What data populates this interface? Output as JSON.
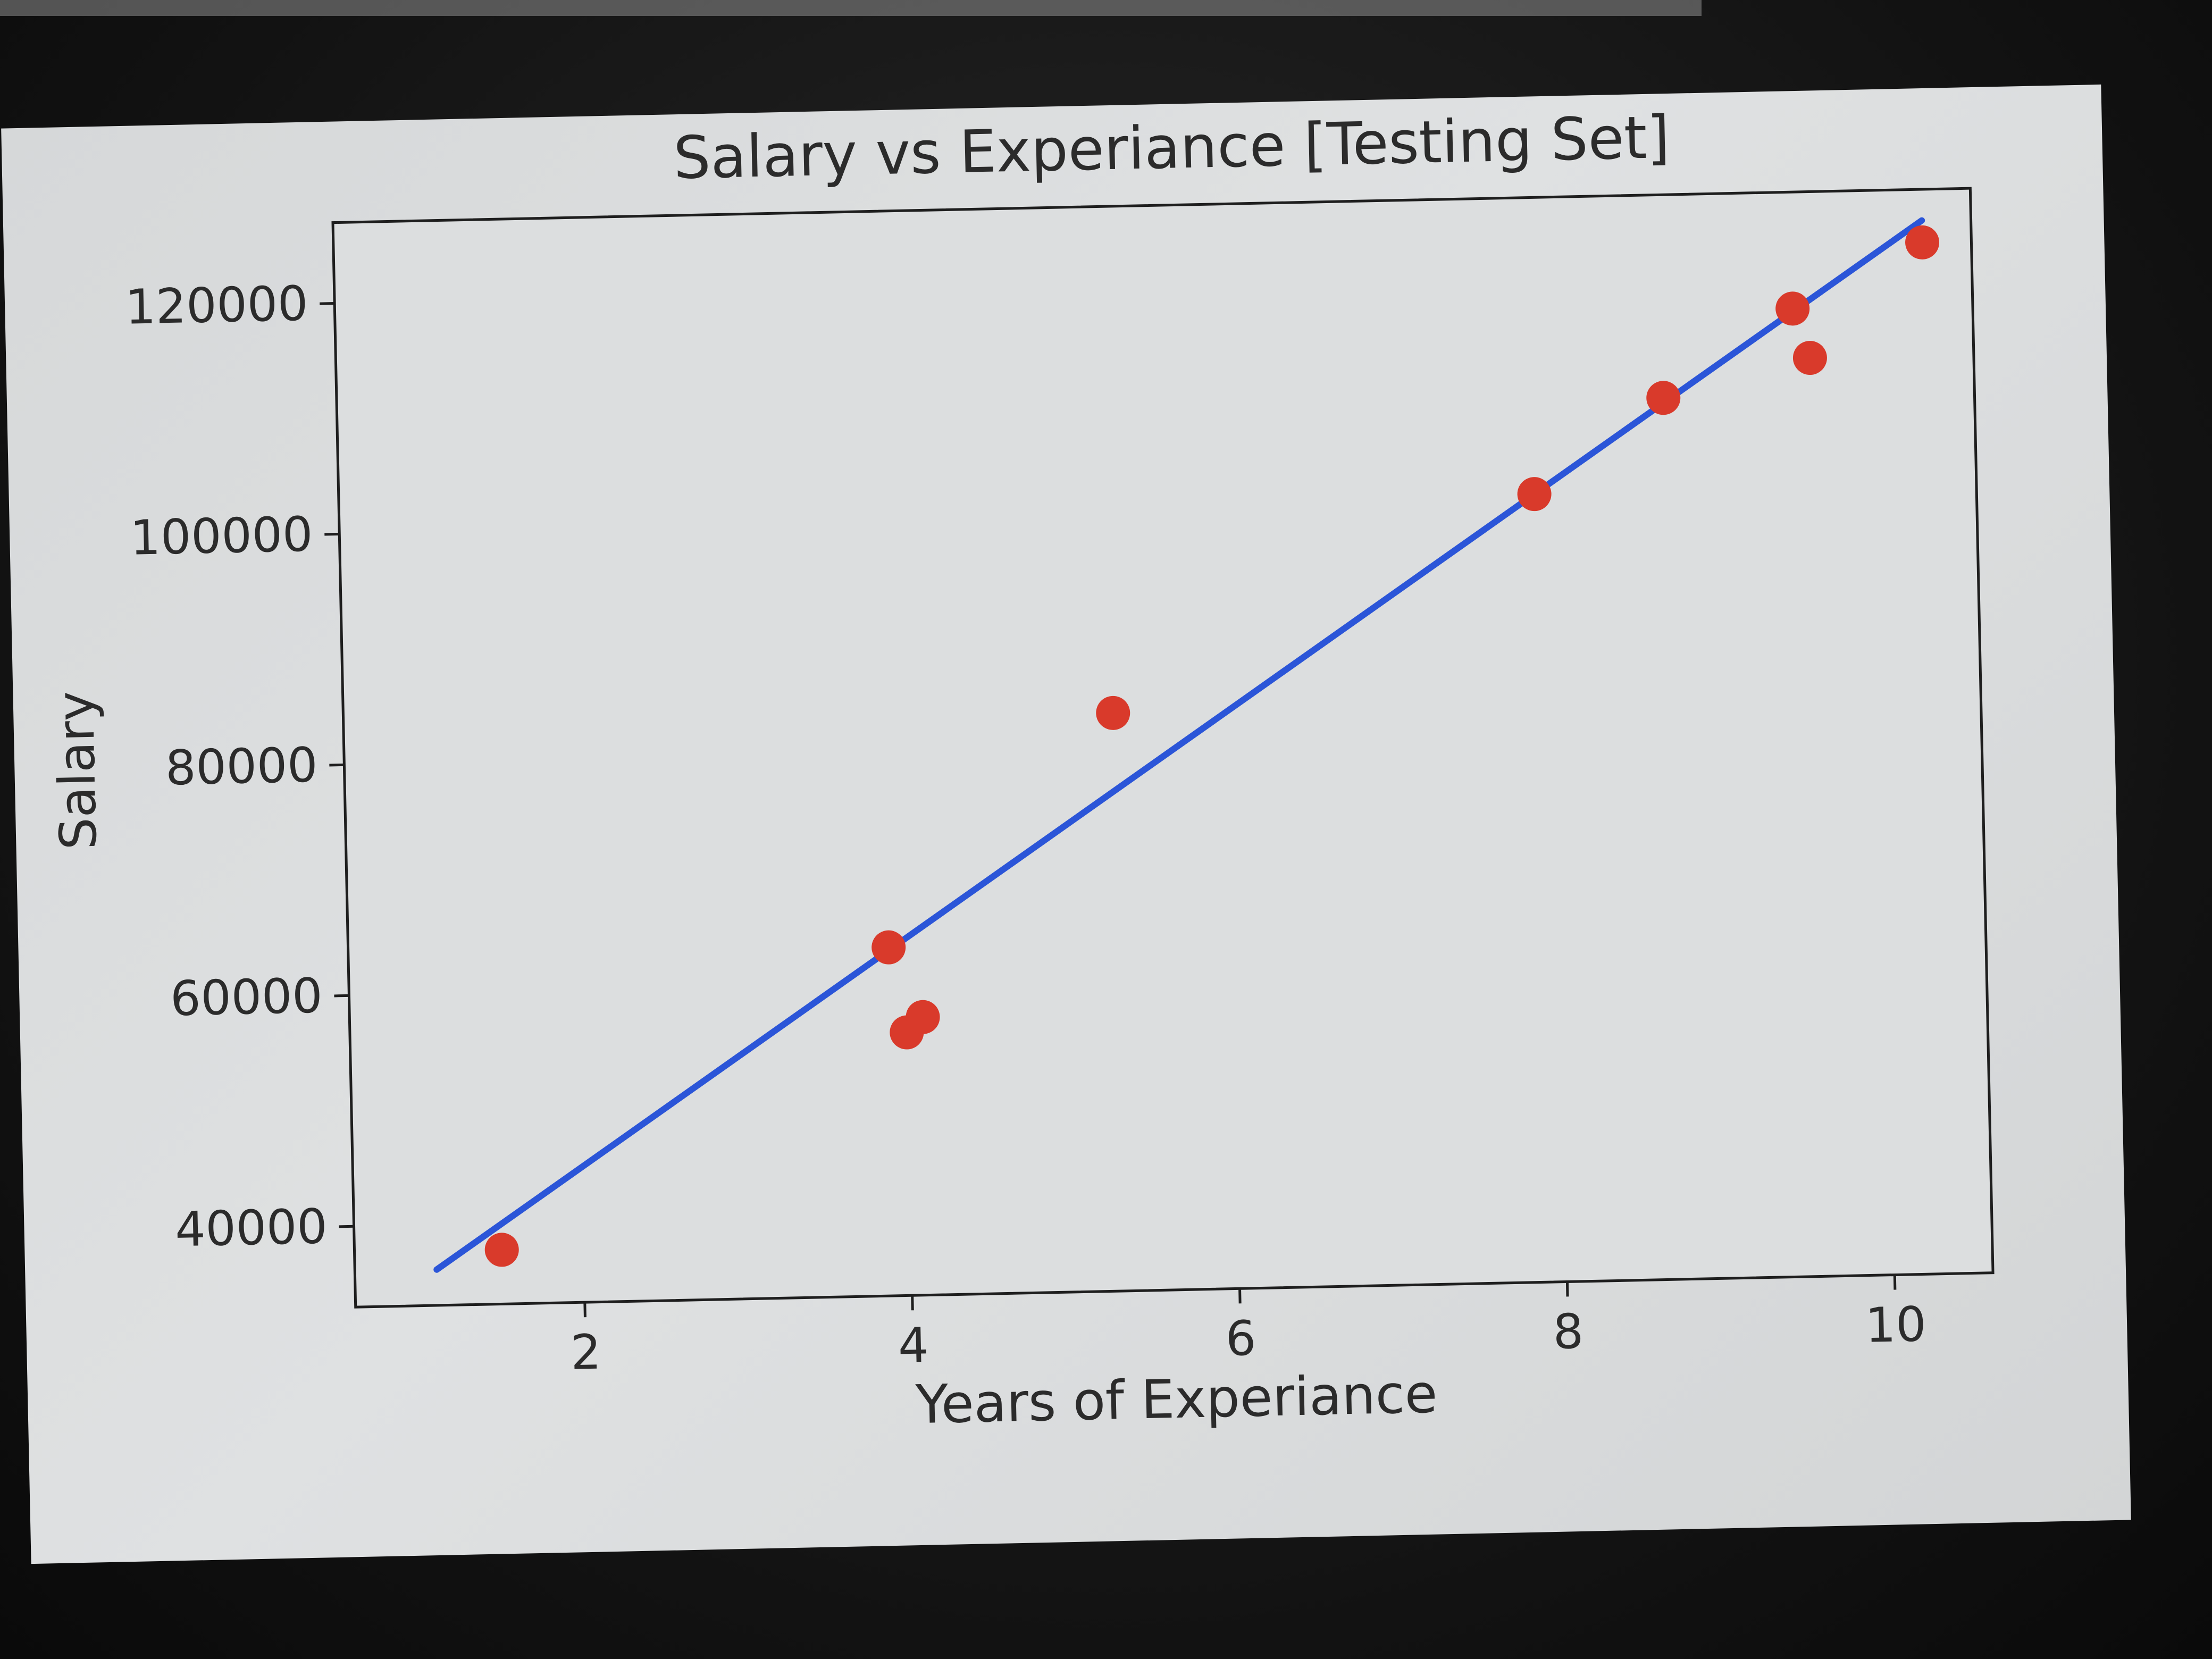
{
  "chart_data": {
    "type": "scatter",
    "title": "Salary vs Experiance [Testing Set]",
    "xlabel": "Years of Experiance",
    "ylabel": "Salary",
    "xlim": [
      0.6,
      10.6
    ],
    "ylim": [
      33000,
      127000
    ],
    "xticks": [
      2,
      4,
      6,
      8,
      10
    ],
    "xtick_labels": [
      "2",
      "4",
      "6",
      "8",
      "10"
    ],
    "yticks": [
      40000,
      60000,
      80000,
      100000,
      120000
    ],
    "ytick_labels": [
      "40000",
      "60000",
      "80000",
      "100000",
      "120000"
    ],
    "grid": false,
    "series": [
      {
        "kind": "scatter",
        "color": "#d93a2b",
        "points": [
          {
            "x": 1.5,
            "y": 37700
          },
          {
            "x": 3.9,
            "y": 63200
          },
          {
            "x": 4.0,
            "y": 55800
          },
          {
            "x": 4.1,
            "y": 57100
          },
          {
            "x": 5.3,
            "y": 83100
          },
          {
            "x": 7.9,
            "y": 101300
          },
          {
            "x": 8.7,
            "y": 109400
          },
          {
            "x": 9.5,
            "y": 116900
          },
          {
            "x": 9.6,
            "y": 112600
          },
          {
            "x": 10.3,
            "y": 122400
          }
        ]
      },
      {
        "kind": "line",
        "color": "#2b55d8",
        "points": [
          {
            "x": 1.1,
            "y": 36100
          },
          {
            "x": 10.3,
            "y": 124300
          }
        ]
      }
    ]
  }
}
